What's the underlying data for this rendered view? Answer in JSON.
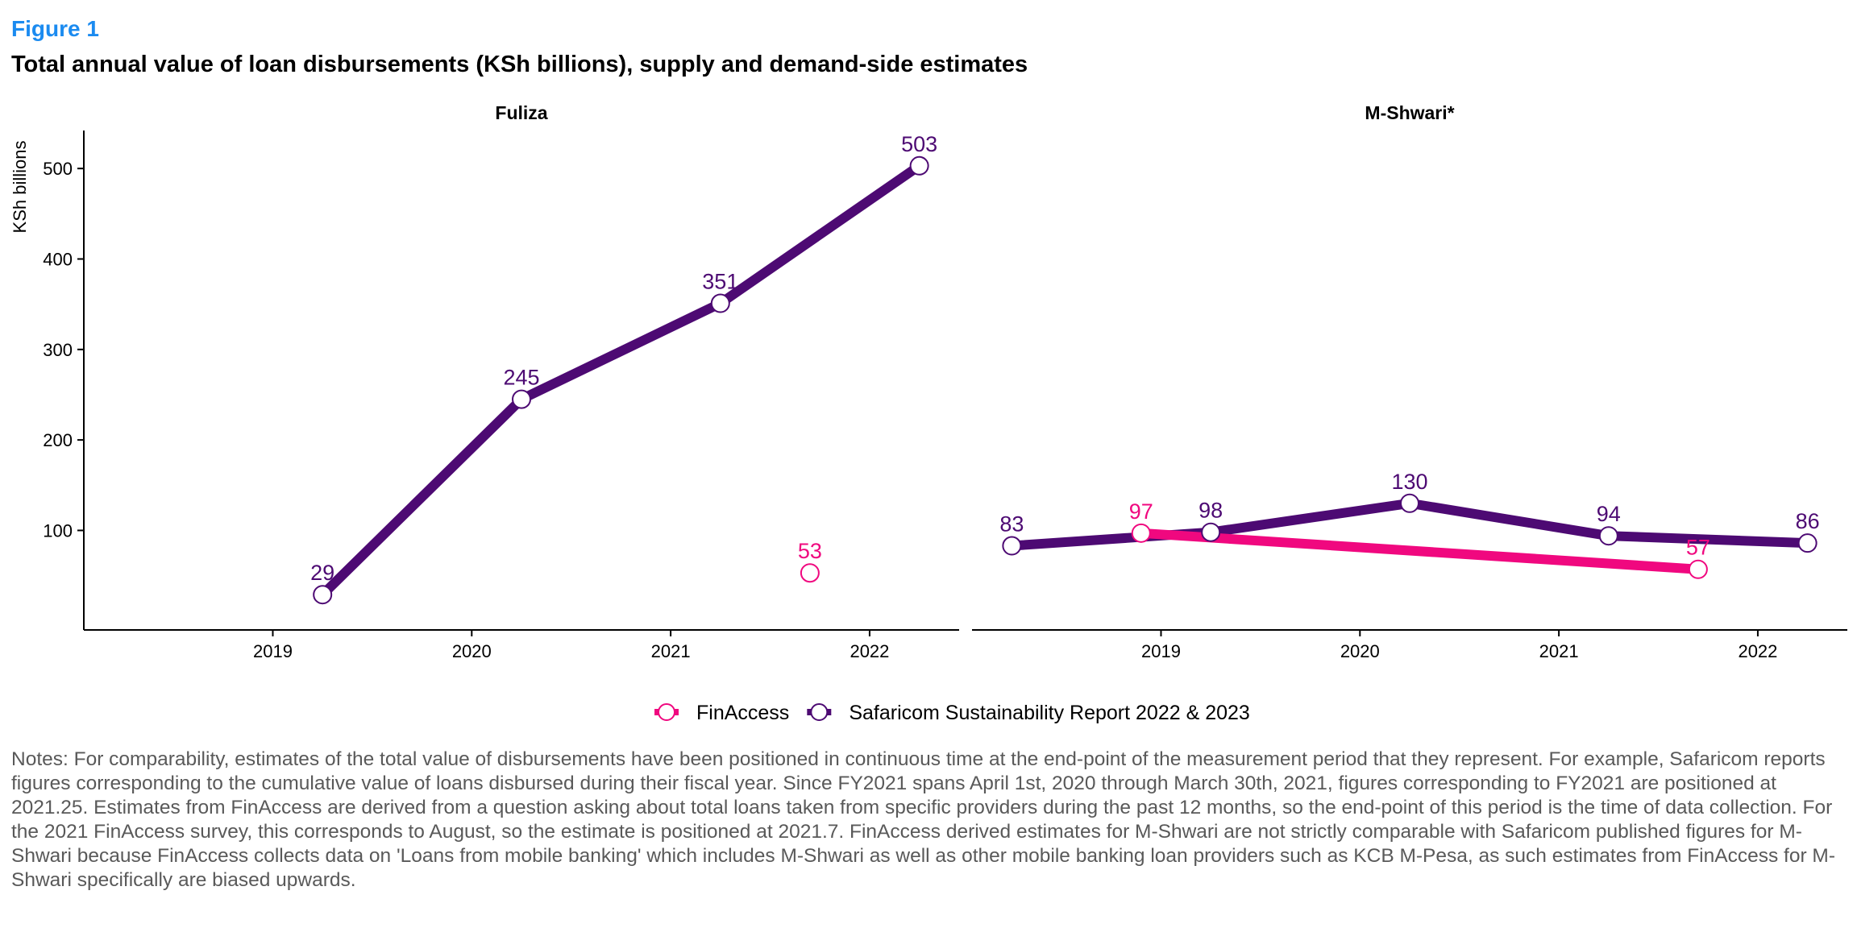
{
  "figure_label": "Figure 1",
  "title": "Total annual value of loan disbursements (KSh billions), supply and demand-side estimates",
  "notes": "Notes: For comparability, estimates of the total value of disbursements have been positioned in continuous time at the end-point of the measurement period that they represent. For example, Safaricom reports figures corresponding to the cumulative value of loans disbursed during their fiscal year. Since FY2021 spans April 1st, 2020 through March 30th, 2021, figures corresponding to FY2021 are positioned at 2021.25. Estimates from FinAccess are derived from a question asking about total loans taken from specific providers during the past 12 months, so the end-point of this period is the time of data collection. For the 2021 FinAccess survey, this corresponds to August, so the estimate is positioned at 2021.7. FinAccess derived estimates for M-Shwari are not strictly comparable with Safaricom published figures for M-Shwari because FinAccess collects data on 'Loans from mobile banking' which includes M-Shwari as well as other mobile banking loan providers such as KCB M-Pesa, as such estimates from FinAccess for M-Shwari specifically are biased upwards.",
  "chart_data": {
    "type": "line",
    "ylabel": "KSh billions",
    "xlim": [
      2018.05,
      2022.45
    ],
    "ylim": [
      -10,
      542
    ],
    "yticks": [
      100,
      200,
      300,
      400,
      500
    ],
    "xticks": [
      2019,
      2020,
      2021,
      2022
    ],
    "grid": false,
    "legend_position": "bottom",
    "legend": [
      {
        "name": "FinAccess",
        "color": "#f0087f"
      },
      {
        "name": "Safaricom Sustainability Report 2022 & 2023",
        "color": "#4d0a73"
      }
    ],
    "panels": [
      {
        "title": "Fuliza",
        "series": [
          {
            "name": "Safaricom Sustainability Report 2022 & 2023",
            "color": "#4d0a73",
            "points": [
              [
                2019.25,
                29
              ],
              [
                2020.25,
                245
              ],
              [
                2021.25,
                351
              ],
              [
                2022.25,
                503
              ]
            ]
          },
          {
            "name": "FinAccess",
            "color": "#f0087f",
            "points": [
              [
                2021.7,
                53
              ]
            ]
          }
        ]
      },
      {
        "title": "M-Shwari*",
        "series": [
          {
            "name": "Safaricom Sustainability Report 2022 & 2023",
            "color": "#4d0a73",
            "points": [
              [
                2018.25,
                83
              ],
              [
                2019.25,
                98
              ],
              [
                2020.25,
                130
              ],
              [
                2021.25,
                94
              ],
              [
                2022.25,
                86
              ]
            ]
          },
          {
            "name": "FinAccess",
            "color": "#f0087f",
            "points": [
              [
                2018.9,
                97
              ],
              [
                2021.7,
                57
              ]
            ]
          }
        ]
      }
    ]
  }
}
